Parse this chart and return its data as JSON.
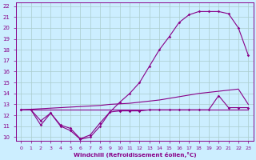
{
  "background_color": "#cceeff",
  "grid_color": "#aacccc",
  "line_color": "#880088",
  "xlabel": "Windchill (Refroidissement éolien,°C)",
  "xlim": [
    -0.5,
    23.5
  ],
  "ylim": [
    9.7,
    22.3
  ],
  "yticks": [
    10,
    11,
    12,
    13,
    14,
    15,
    16,
    17,
    18,
    19,
    20,
    21,
    22
  ],
  "xticks": [
    0,
    1,
    2,
    3,
    4,
    5,
    6,
    7,
    8,
    9,
    10,
    11,
    12,
    13,
    14,
    15,
    16,
    17,
    18,
    19,
    20,
    21,
    22,
    23
  ],
  "curve1_x": [
    0,
    1,
    2,
    3,
    4,
    5,
    6,
    7,
    8,
    9,
    10,
    11,
    12,
    13,
    14,
    15,
    16,
    17,
    18,
    19,
    20,
    21,
    22,
    23
  ],
  "curve1_y": [
    12.5,
    12.5,
    12.5,
    12.5,
    12.5,
    12.5,
    12.5,
    12.5,
    12.5,
    12.5,
    12.5,
    12.5,
    12.5,
    12.5,
    12.5,
    12.5,
    12.5,
    12.5,
    12.5,
    12.5,
    12.5,
    12.5,
    12.5,
    12.5
  ],
  "curve2_x": [
    0,
    1,
    2,
    3,
    4,
    5,
    6,
    7,
    8,
    9,
    10,
    11,
    12,
    13,
    14,
    15,
    16,
    17,
    18,
    19,
    20,
    21,
    22,
    23
  ],
  "curve2_y": [
    12.5,
    12.55,
    12.6,
    12.65,
    12.7,
    12.75,
    12.8,
    12.85,
    12.9,
    13.0,
    13.05,
    13.1,
    13.2,
    13.3,
    13.4,
    13.55,
    13.7,
    13.85,
    14.0,
    14.1,
    14.2,
    14.3,
    14.4,
    13.0
  ],
  "curve3_x": [
    0,
    1,
    2,
    3,
    4,
    5,
    6,
    7,
    8,
    9,
    10,
    11,
    12,
    13,
    14,
    15,
    16,
    17,
    18,
    19,
    20,
    21,
    22,
    23
  ],
  "curve3_y": [
    12.5,
    12.5,
    11.1,
    12.2,
    11.0,
    10.6,
    9.8,
    10.0,
    11.0,
    12.3,
    12.4,
    12.4,
    12.4,
    12.5,
    12.5,
    12.5,
    12.5,
    12.5,
    12.5,
    12.5,
    13.8,
    12.7,
    12.7,
    12.7
  ],
  "curve4_x": [
    0,
    1,
    2,
    3,
    4,
    5,
    6,
    7,
    8,
    9,
    10,
    11,
    12,
    13,
    14,
    15,
    16,
    17,
    18,
    19,
    20,
    21,
    22,
    23
  ],
  "curve4_y": [
    12.5,
    12.5,
    11.5,
    12.2,
    11.1,
    10.8,
    9.85,
    10.2,
    11.3,
    12.3,
    13.2,
    14.0,
    15.0,
    16.5,
    18.0,
    19.2,
    20.5,
    21.2,
    21.5,
    21.5,
    21.5,
    21.3,
    20.0,
    17.5
  ],
  "figwidth": 3.2,
  "figheight": 2.0,
  "dpi": 100
}
